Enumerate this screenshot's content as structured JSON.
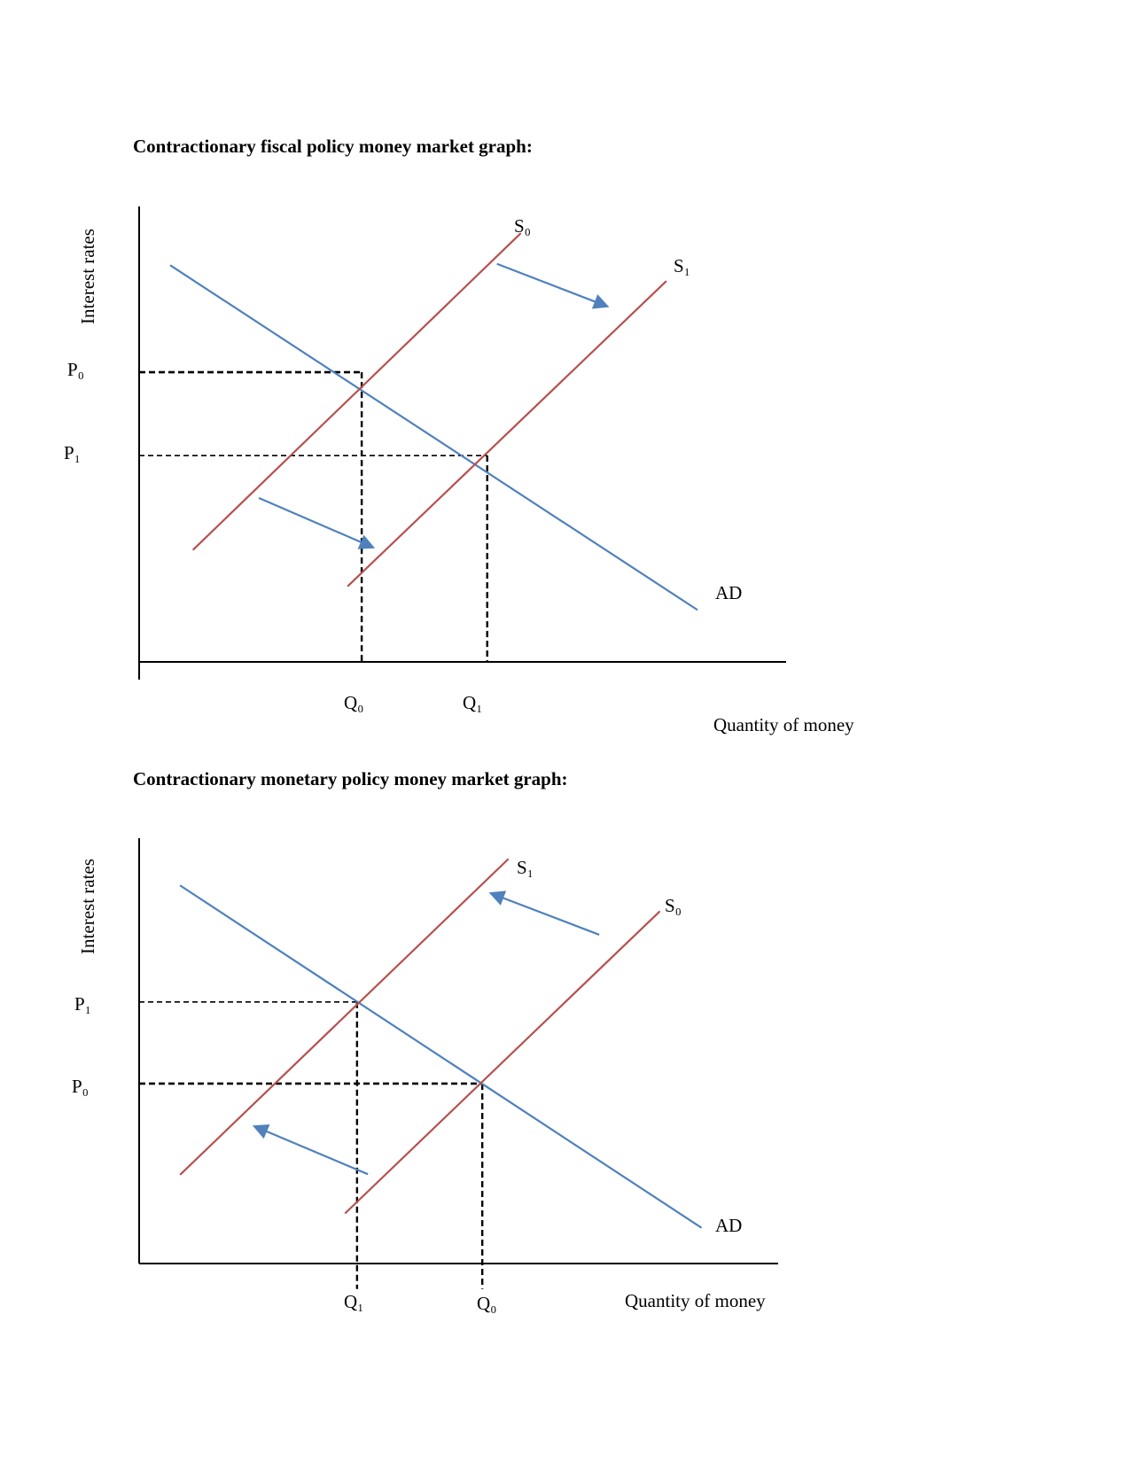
{
  "chart_data": [
    {
      "type": "line",
      "title": "Contractionary fiscal policy money market graph:",
      "xlabel": "Quantity of money",
      "ylabel": "Interest rates",
      "xlim": [
        0,
        10
      ],
      "ylim": [
        0,
        10
      ],
      "colors": {
        "supply": "#b5514f",
        "demand": "#4f81bd",
        "arrow": "#4f81bd",
        "axis": "#000000"
      },
      "series": [
        {
          "name": "AD",
          "role": "demand",
          "points": [
            [
              0.49,
              8.7
            ],
            [
              8.62,
              1.15
            ]
          ]
        },
        {
          "name": "S₀",
          "role": "supply",
          "points": [
            [
              0.84,
              2.47
            ],
            [
              5.89,
              9.4
            ]
          ]
        },
        {
          "name": "S₁",
          "role": "supply",
          "points": [
            [
              3.23,
              1.67
            ],
            [
              8.14,
              8.35
            ]
          ]
        }
      ],
      "arrows": [
        {
          "from": [
            5.53,
            8.74
          ],
          "to": [
            7.21,
            7.82
          ]
        },
        {
          "from": [
            1.85,
            3.6
          ],
          "to": [
            3.59,
            2.53
          ]
        }
      ],
      "reference_levels": [
        {
          "p_label": "P₀",
          "q_label": "Q₀",
          "p": 6.36,
          "q": 3.44,
          "heavy": true
        },
        {
          "p_label": "P₁",
          "q_label": "Q₁",
          "p": 4.53,
          "q": 5.38,
          "heavy": false
        }
      ],
      "q_drop_extends_below": 0
    },
    {
      "type": "line",
      "title": "Contractionary monetary policy money market graph:",
      "xlabel": "Quantity of money",
      "ylabel": "Interest rates",
      "xlim": [
        0,
        10
      ],
      "ylim": [
        0,
        10
      ],
      "colors": {
        "supply": "#b5514f",
        "demand": "#4f81bd",
        "arrow": "#4f81bd",
        "axis": "#000000"
      },
      "series": [
        {
          "name": "AD",
          "role": "demand",
          "points": [
            [
              0.65,
              8.88
            ],
            [
              8.79,
              0.85
            ]
          ]
        },
        {
          "name": "S₁",
          "role": "supply",
          "points": [
            [
              0.65,
              2.1
            ],
            [
              5.77,
              9.5
            ]
          ]
        },
        {
          "name": "S₀",
          "role": "supply",
          "points": [
            [
              3.23,
              1.19
            ],
            [
              8.14,
              8.27
            ]
          ]
        }
      ],
      "arrows": [
        {
          "from": [
            7.2,
            7.73
          ],
          "to": [
            5.53,
            8.69
          ]
        },
        {
          "from": [
            3.58,
            2.1
          ],
          "to": [
            1.83,
            3.21
          ]
        }
      ],
      "reference_levels": [
        {
          "p_label": "P₁",
          "q_label": "Q₁",
          "p": 6.15,
          "q": 3.41,
          "heavy": false
        },
        {
          "p_label": "P₀",
          "q_label": "Q₀",
          "p": 4.23,
          "q": 5.37,
          "heavy": true
        }
      ],
      "q_drop_extends_below": 0.6
    }
  ]
}
